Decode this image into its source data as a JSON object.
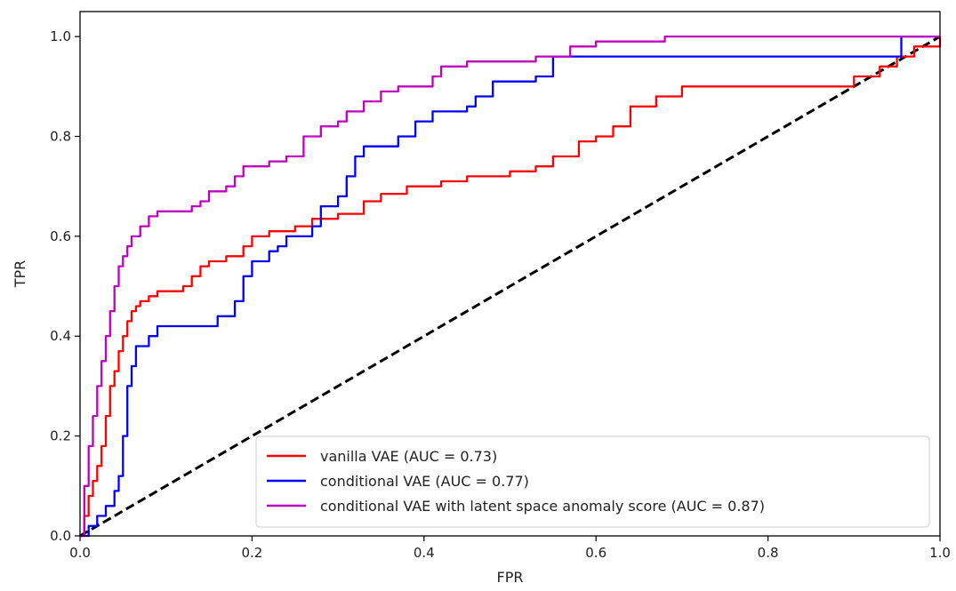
{
  "chart_data": {
    "type": "line",
    "xlabel": "FPR",
    "ylabel": "TPR",
    "xlim": [
      0,
      1
    ],
    "ylim": [
      0,
      1.05
    ],
    "xticks": [
      "0.0",
      "0.2",
      "0.4",
      "0.6",
      "0.8",
      "1.0"
    ],
    "yticks": [
      "0.0",
      "0.2",
      "0.4",
      "0.6",
      "0.8",
      "1.0"
    ],
    "grid": false,
    "legend_position": "lower-right",
    "series": [
      {
        "name": "vanilla VAE (AUC =  0.73)",
        "color": "#ff0000",
        "points": [
          [
            0,
            0
          ],
          [
            0.005,
            0.04
          ],
          [
            0.01,
            0.08
          ],
          [
            0.015,
            0.11
          ],
          [
            0.02,
            0.14
          ],
          [
            0.025,
            0.18
          ],
          [
            0.03,
            0.24
          ],
          [
            0.035,
            0.3
          ],
          [
            0.04,
            0.33
          ],
          [
            0.045,
            0.37
          ],
          [
            0.05,
            0.4
          ],
          [
            0.055,
            0.43
          ],
          [
            0.06,
            0.45
          ],
          [
            0.065,
            0.46
          ],
          [
            0.07,
            0.47
          ],
          [
            0.08,
            0.48
          ],
          [
            0.09,
            0.49
          ],
          [
            0.1,
            0.49
          ],
          [
            0.12,
            0.5
          ],
          [
            0.13,
            0.52
          ],
          [
            0.14,
            0.54
          ],
          [
            0.15,
            0.55
          ],
          [
            0.17,
            0.56
          ],
          [
            0.19,
            0.58
          ],
          [
            0.2,
            0.6
          ],
          [
            0.22,
            0.61
          ],
          [
            0.25,
            0.62
          ],
          [
            0.27,
            0.635
          ],
          [
            0.3,
            0.645
          ],
          [
            0.33,
            0.67
          ],
          [
            0.35,
            0.685
          ],
          [
            0.38,
            0.7
          ],
          [
            0.42,
            0.71
          ],
          [
            0.45,
            0.72
          ],
          [
            0.5,
            0.73
          ],
          [
            0.53,
            0.74
          ],
          [
            0.55,
            0.76
          ],
          [
            0.58,
            0.79
          ],
          [
            0.6,
            0.8
          ],
          [
            0.62,
            0.82
          ],
          [
            0.64,
            0.86
          ],
          [
            0.67,
            0.88
          ],
          [
            0.7,
            0.9
          ],
          [
            0.75,
            0.9
          ],
          [
            0.8,
            0.9
          ],
          [
            0.85,
            0.9
          ],
          [
            0.88,
            0.9
          ],
          [
            0.9,
            0.92
          ],
          [
            0.93,
            0.94
          ],
          [
            0.95,
            0.96
          ],
          [
            0.97,
            0.98
          ],
          [
            1.0,
            1.0
          ]
        ]
      },
      {
        "name": "conditional VAE (AUC =  0.77)",
        "color": "#0000ff",
        "points": [
          [
            0,
            0
          ],
          [
            0.01,
            0.02
          ],
          [
            0.02,
            0.04
          ],
          [
            0.03,
            0.06
          ],
          [
            0.04,
            0.09
          ],
          [
            0.045,
            0.12
          ],
          [
            0.05,
            0.2
          ],
          [
            0.055,
            0.3
          ],
          [
            0.06,
            0.34
          ],
          [
            0.065,
            0.38
          ],
          [
            0.075,
            0.38
          ],
          [
            0.08,
            0.4
          ],
          [
            0.09,
            0.42
          ],
          [
            0.12,
            0.42
          ],
          [
            0.15,
            0.42
          ],
          [
            0.16,
            0.44
          ],
          [
            0.17,
            0.44
          ],
          [
            0.18,
            0.47
          ],
          [
            0.19,
            0.52
          ],
          [
            0.2,
            0.55
          ],
          [
            0.22,
            0.57
          ],
          [
            0.23,
            0.58
          ],
          [
            0.24,
            0.6
          ],
          [
            0.25,
            0.6
          ],
          [
            0.27,
            0.62
          ],
          [
            0.28,
            0.66
          ],
          [
            0.3,
            0.68
          ],
          [
            0.31,
            0.72
          ],
          [
            0.32,
            0.76
          ],
          [
            0.33,
            0.78
          ],
          [
            0.35,
            0.78
          ],
          [
            0.37,
            0.8
          ],
          [
            0.39,
            0.83
          ],
          [
            0.41,
            0.85
          ],
          [
            0.43,
            0.85
          ],
          [
            0.45,
            0.86
          ],
          [
            0.46,
            0.88
          ],
          [
            0.48,
            0.91
          ],
          [
            0.5,
            0.91
          ],
          [
            0.53,
            0.92
          ],
          [
            0.55,
            0.96
          ],
          [
            0.6,
            0.96
          ],
          [
            0.7,
            0.96
          ],
          [
            0.8,
            0.96
          ],
          [
            0.9,
            0.96
          ],
          [
            0.95,
            0.96
          ],
          [
            0.955,
            1.0
          ],
          [
            1.0,
            1.0
          ]
        ]
      },
      {
        "name": "conditional VAE with latent space anomaly score (AUC =  0.87)",
        "color": "#bf00bf",
        "points": [
          [
            0,
            0
          ],
          [
            0.005,
            0.1
          ],
          [
            0.01,
            0.18
          ],
          [
            0.015,
            0.24
          ],
          [
            0.02,
            0.3
          ],
          [
            0.025,
            0.35
          ],
          [
            0.03,
            0.4
          ],
          [
            0.035,
            0.45
          ],
          [
            0.04,
            0.5
          ],
          [
            0.045,
            0.54
          ],
          [
            0.05,
            0.56
          ],
          [
            0.055,
            0.58
          ],
          [
            0.06,
            0.6
          ],
          [
            0.07,
            0.62
          ],
          [
            0.08,
            0.64
          ],
          [
            0.09,
            0.65
          ],
          [
            0.11,
            0.65
          ],
          [
            0.13,
            0.66
          ],
          [
            0.14,
            0.67
          ],
          [
            0.15,
            0.69
          ],
          [
            0.17,
            0.7
          ],
          [
            0.18,
            0.72
          ],
          [
            0.19,
            0.74
          ],
          [
            0.21,
            0.74
          ],
          [
            0.22,
            0.75
          ],
          [
            0.24,
            0.76
          ],
          [
            0.26,
            0.8
          ],
          [
            0.28,
            0.82
          ],
          [
            0.3,
            0.83
          ],
          [
            0.31,
            0.85
          ],
          [
            0.33,
            0.87
          ],
          [
            0.35,
            0.89
          ],
          [
            0.37,
            0.9
          ],
          [
            0.39,
            0.9
          ],
          [
            0.41,
            0.92
          ],
          [
            0.42,
            0.94
          ],
          [
            0.45,
            0.95
          ],
          [
            0.5,
            0.95
          ],
          [
            0.53,
            0.96
          ],
          [
            0.57,
            0.98
          ],
          [
            0.6,
            0.99
          ],
          [
            0.68,
            1.0
          ],
          [
            0.8,
            1.0
          ],
          [
            1.0,
            1.0
          ]
        ]
      }
    ],
    "reference_line": {
      "points": [
        [
          0,
          0
        ],
        [
          1,
          1
        ]
      ],
      "color": "#000000",
      "style": "dashed"
    }
  }
}
